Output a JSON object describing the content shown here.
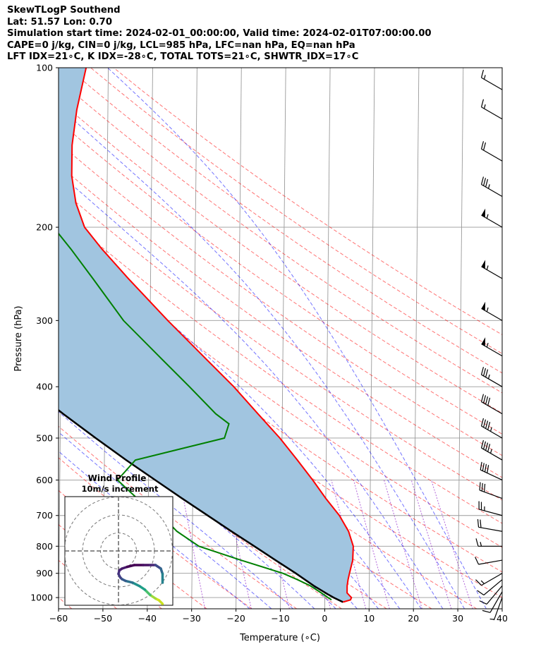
{
  "header": {
    "line1": "SkewTLogP Southend",
    "line2": "Lat: 51.57   Lon: 0.70",
    "line3": "Simulation start time: 2024-02-01_00:00:00, Valid time: 2024-02-01T07:00:00.00",
    "line4": "CAPE=0 j/kg, CIN=0 j/kg, LCL=985 hPa, LFC=nan hPa, EQ=nan hPa",
    "line5": "LFT IDX=21∘C, K IDX=-28∘C, TOTAL TOTS=21∘C, SHWTR_IDX=17∘C"
  },
  "colors": {
    "temperature": "#ff0000",
    "dewpoint": "#008000",
    "parcel": "#000000",
    "cape_fill": "#a1c5e0",
    "dry_adiabat": "#ff0000",
    "moist_adiabat": "#0000ff",
    "mixing_ratio": "#8000c0",
    "isotherm": "#9a9a9a",
    "isobar": "#9a9a9a"
  },
  "inset": {
    "title": "Wind Profile",
    "subtitle": "10m/s increment"
  },
  "chart_data": [
    {
      "type": "line",
      "subtype": "skew-t log-p",
      "xlabel": "Temperature (∘C)",
      "ylabel": "Pressure (hPa)",
      "xlim": [
        -60,
        40
      ],
      "ylim": [
        1050,
        100
      ],
      "y_scale": "log",
      "x_ticks": [
        -60,
        -50,
        -40,
        -30,
        -20,
        -10,
        0,
        10,
        20,
        30,
        40
      ],
      "x_tick_labels": [
        "−60",
        "−50",
        "−40",
        "−30",
        "−20",
        "−10",
        "0",
        "10",
        "20",
        "30",
        "40"
      ],
      "y_ticks": [
        100,
        200,
        300,
        400,
        500,
        600,
        700,
        800,
        900,
        1000
      ],
      "y_tick_labels": [
        "100",
        "200",
        "300",
        "400",
        "500",
        "600",
        "700",
        "800",
        "900",
        "1000"
      ],
      "grid": true,
      "series": [
        {
          "key": "temperature",
          "pressure": [
            1020,
            1010,
            1000,
            980,
            950,
            925,
            900,
            850,
            800,
            750,
            700,
            650,
            600,
            550,
            500,
            450,
            400,
            350,
            300,
            250,
            220,
            200,
            180,
            160,
            140,
            120,
            100
          ],
          "values": [
            4.1,
            5.8,
            6.0,
            5.0,
            5.0,
            5.2,
            5.5,
            6.2,
            6.3,
            5.2,
            3.1,
            0.0,
            -3.0,
            -6.5,
            -10.5,
            -15.5,
            -21.0,
            -28.0,
            -36.0,
            -45.0,
            -51.0,
            -55.0,
            -57.0,
            -58.0,
            -58.0,
            -57.0,
            -55.0
          ]
        },
        {
          "key": "dewpoint",
          "pressure": [
            1010,
            1000,
            980,
            950,
            925,
            900,
            850,
            800,
            750,
            700,
            650,
            600,
            550,
            500,
            470,
            450,
            400,
            350,
            300,
            250,
            220,
            200,
            180,
            160,
            150,
            140,
            120,
            100
          ],
          "values": [
            1.5,
            0.7,
            -0.8,
            -3.3,
            -6.2,
            -9.5,
            -19.0,
            -28.5,
            -33.5,
            -37.0,
            -42.5,
            -47.0,
            -43.0,
            -23.0,
            -22.0,
            -25.0,
            -31.0,
            -38.0,
            -46.0,
            -53.0,
            -58.0,
            -62.0,
            -65.0,
            -68.0,
            -73.0,
            -75.0,
            -75.0,
            -76.0
          ]
        },
        {
          "key": "parcel",
          "pressure": [
            1020,
            1000,
            985,
            950,
            900,
            850,
            800,
            750,
            700,
            650,
            600,
            550,
            500,
            450,
            400,
            350,
            300,
            250,
            200,
            150,
            100
          ],
          "values": [
            4.1,
            2.0,
            0.6,
            -2.5,
            -6.6,
            -11.2,
            -16.0,
            -21.2,
            -26.6,
            -32.4,
            -38.5,
            -45.1,
            -52.0,
            -59.4,
            -67.2,
            -75.6,
            -84.8,
            -95.0,
            -106.7,
            -120.4,
            -138.1
          ]
        }
      ],
      "dry_adiabats_theta_c": [
        -60,
        -50,
        -40,
        -30,
        -20,
        -10,
        0,
        10,
        20,
        30,
        40,
        50,
        60,
        70,
        80,
        90,
        100,
        110,
        120,
        130,
        140,
        150,
        160
      ],
      "moist_adiabats_theta_c": [
        -20,
        -15,
        -10,
        -5,
        0,
        5,
        10,
        15,
        20,
        25,
        30,
        35
      ],
      "mixing_ratios_g_per_kg": [
        0.4,
        1,
        2,
        4,
        7,
        10,
        16,
        24,
        32
      ],
      "wind_barbs": {
        "pressure": [
          1000,
          975,
          950,
          925,
          900,
          850,
          800,
          750,
          700,
          650,
          600,
          550,
          500,
          450,
          400,
          350,
          300,
          250,
          200,
          175,
          150,
          125,
          110
        ],
        "speed_kt": [
          8,
          10,
          12,
          14,
          15,
          12,
          15,
          20,
          25,
          30,
          40,
          45,
          45,
          40,
          35,
          55,
          55,
          55,
          55,
          35,
          20,
          15,
          15
        ],
        "direction_deg": [
          200,
          210,
          220,
          230,
          240,
          260,
          270,
          280,
          285,
          290,
          295,
          300,
          300,
          300,
          300,
          300,
          300,
          300,
          300,
          300,
          300,
          300,
          300
        ]
      }
    },
    {
      "type": "line",
      "subtype": "hodograph",
      "title": "Wind Profile",
      "subtitle": "10m/s increment",
      "rings_ms": [
        10,
        20,
        30
      ],
      "xlim": [
        -30,
        30
      ],
      "ylim": [
        -30,
        30
      ],
      "u_ms": [
        25,
        23,
        21,
        18,
        15,
        12,
        8,
        4,
        2,
        1,
        0,
        0.5,
        2,
        5,
        9,
        14,
        18,
        21,
        24,
        25,
        25
      ],
      "v_ms": [
        -30,
        -28,
        -27,
        -25,
        -22,
        -20,
        -18,
        -17,
        -16,
        -15,
        -13,
        -11,
        -10,
        -9,
        -8,
        -8,
        -8,
        -8,
        -10,
        -13,
        -18
      ]
    }
  ]
}
